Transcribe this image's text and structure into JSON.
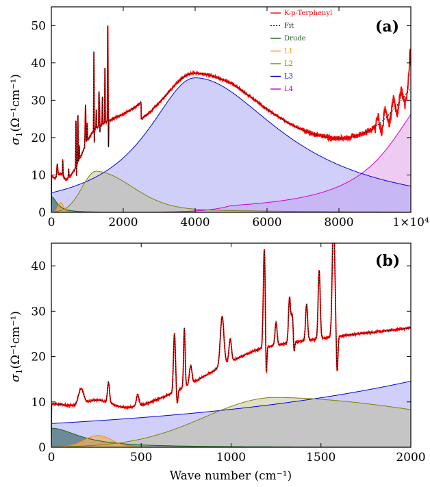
{
  "chart_data": [
    {
      "panel_label": "(a)",
      "type": "area",
      "ylabel_main": "σ",
      "ylabel_sub": "1",
      "ylabel_units": "(Ω⁻¹cm⁻¹)",
      "xlim": [
        0,
        10000
      ],
      "ylim": [
        0,
        55
      ],
      "x_ticks": [
        0,
        2000,
        4000,
        6000,
        8000,
        10000
      ],
      "x_tick_labels": [
        "0",
        "2000",
        "4000",
        "6000",
        "8000",
        "1×10⁴"
      ],
      "y_ticks": [
        0,
        10,
        20,
        30,
        40,
        50
      ],
      "y_tick_labels": [
        "0",
        "10",
        "20",
        "30",
        "40",
        "50"
      ],
      "legend_position": "top-right",
      "legend": [
        {
          "label": "K-p-Terphenyl",
          "color": "#ff0000",
          "style": "solid"
        },
        {
          "label": "Fit",
          "color": "#000000",
          "style": "dotted"
        },
        {
          "label": "Drude",
          "color": "#1a5e1a",
          "style": "solid"
        },
        {
          "label": "L1",
          "color": "#ff8c00",
          "style": "solid"
        },
        {
          "label": "L2",
          "color": "#808000",
          "style": "solid"
        },
        {
          "label": "L3",
          "color": "#0000dd",
          "style": "solid"
        },
        {
          "label": "L4",
          "color": "#cc00cc",
          "style": "solid"
        }
      ]
    },
    {
      "panel_label": "(b)",
      "type": "area",
      "ylabel_main": "σ",
      "ylabel_sub": "1",
      "ylabel_units": "(Ω⁻¹cm⁻¹)",
      "xlabel": "Wave number (cm⁻¹)",
      "xlim": [
        0,
        2000
      ],
      "ylim": [
        0,
        45
      ],
      "x_ticks": [
        0,
        500,
        1000,
        1500,
        2000
      ],
      "x_tick_labels": [
        "0",
        "500",
        "1000",
        "1500",
        "2000"
      ],
      "y_ticks": [
        0,
        10,
        20,
        30,
        40
      ],
      "y_tick_labels": [
        "0",
        "10",
        "20",
        "30",
        "40"
      ]
    }
  ]
}
